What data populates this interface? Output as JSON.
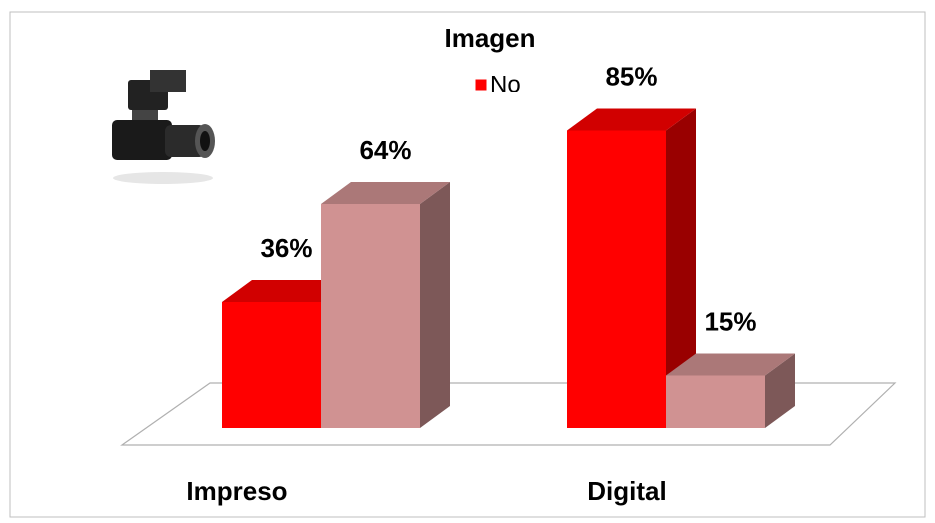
{
  "chart_data": {
    "type": "bar3d",
    "title": "Imagen",
    "categories": [
      "Impreso",
      "Digital"
    ],
    "series": [
      {
        "name": "No",
        "color": "#ff0000",
        "values": [
          36,
          85
        ],
        "value_labels": [
          "36%",
          "85%"
        ]
      },
      {
        "color": "#d09292",
        "values": [
          64,
          15
        ],
        "value_labels": [
          "64%",
          "15%"
        ]
      }
    ]
  }
}
